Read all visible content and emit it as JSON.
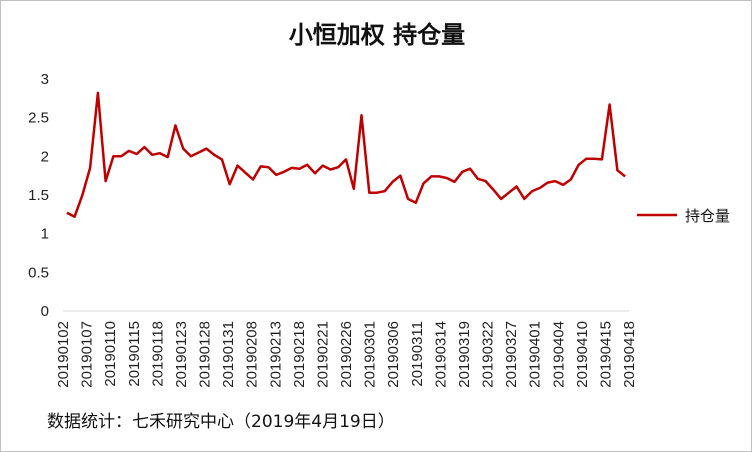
{
  "chart_data": {
    "type": "line",
    "title": "小恒加权 持仓量",
    "xlabel": "",
    "ylabel": "",
    "ylim": [
      0,
      3
    ],
    "y_ticks": [
      "0",
      "0.5",
      "1",
      "1.5",
      "2",
      "2.5",
      "3"
    ],
    "legend_position": "right",
    "grid": false,
    "x_tick_labels": [
      "20190102",
      "20190107",
      "20190110",
      "20190115",
      "20190118",
      "20190123",
      "20190128",
      "20190131",
      "20190208",
      "20190213",
      "20190218",
      "20190221",
      "20190226",
      "20190301",
      "20190306",
      "20190311",
      "20190314",
      "20190319",
      "20190322",
      "20190327",
      "20190401",
      "20190404",
      "20190410",
      "20190415",
      "20190418"
    ],
    "series": [
      {
        "name": "持仓量",
        "color": "#c00000",
        "values": [
          1.27,
          1.22,
          1.5,
          1.85,
          2.82,
          1.68,
          2.0,
          2.0,
          2.07,
          2.03,
          2.12,
          2.02,
          2.04,
          1.99,
          2.4,
          2.1,
          2.0,
          2.05,
          2.1,
          2.02,
          1.96,
          1.64,
          1.88,
          1.79,
          1.7,
          1.87,
          1.86,
          1.76,
          1.8,
          1.85,
          1.84,
          1.89,
          1.78,
          1.88,
          1.83,
          1.86,
          1.96,
          1.58,
          2.53,
          1.53,
          1.53,
          1.55,
          1.67,
          1.75,
          1.45,
          1.4,
          1.65,
          1.74,
          1.74,
          1.72,
          1.67,
          1.8,
          1.84,
          1.71,
          1.68,
          1.57,
          1.45,
          1.53,
          1.61,
          1.45,
          1.55,
          1.59,
          1.66,
          1.68,
          1.63,
          1.7,
          1.89,
          1.97,
          1.97,
          1.96,
          2.67,
          1.82,
          1.74
        ]
      }
    ]
  },
  "footer": "数据统计：七禾研究中心（2019年4月19日）"
}
